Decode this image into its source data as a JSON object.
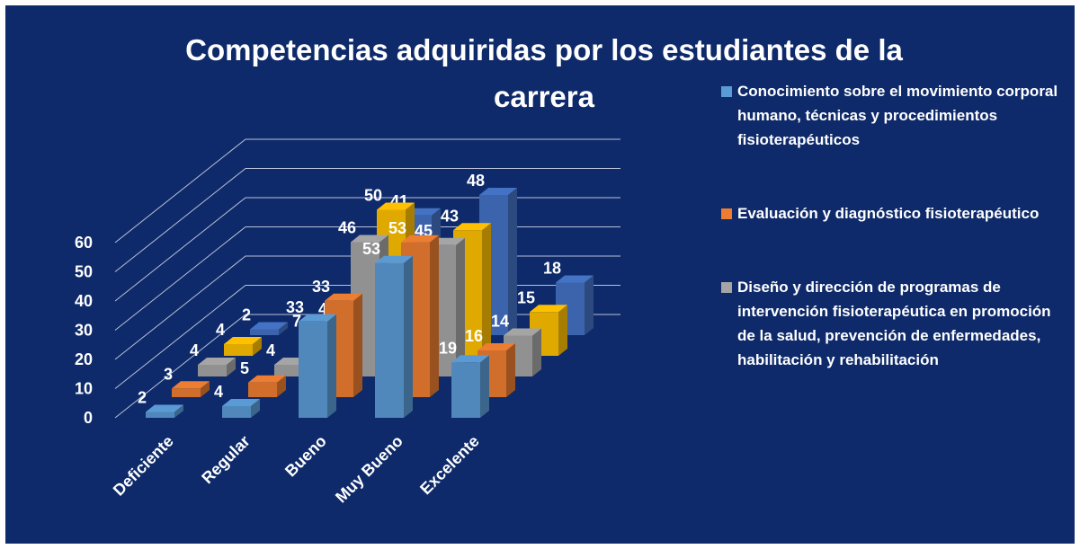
{
  "chart_data": {
    "type": "bar3d",
    "title": "Competencias adquiridas por los estudiantes de la carrera",
    "categories": [
      "Deficiente",
      "Regular",
      "Bueno",
      "Muy Bueno",
      "Excelente"
    ],
    "series": [
      {
        "name": "Conocimiento  sobre el movimiento corporal humano, técnicas  y procedimientos  fisioterapéuticos",
        "color": "#5b9bd5",
        "values": [
          2,
          4,
          33,
          53,
          19
        ]
      },
      {
        "name": "Evaluación y diagnóstico fisioterapéutico",
        "color": "#ed7d31",
        "values": [
          3,
          5,
          33,
          53,
          16
        ]
      },
      {
        "name": "Diseño y dirección de programas de intervención  fisioterapéutica en promoción de la salud, prevención de enfermedades, habilitación  y rehabilitación",
        "color": "#a5a5a5",
        "values": [
          4,
          4,
          46,
          45,
          14
        ]
      },
      {
        "color": "#ffc000",
        "values": [
          4,
          7,
          50,
          43,
          15
        ]
      },
      {
        "color": "#4472c4",
        "values": [
          2,
          4,
          41,
          48,
          18
        ]
      }
    ],
    "ylim": [
      0,
      60
    ],
    "yticks": [
      0,
      10,
      20,
      30,
      40,
      50,
      60
    ],
    "grid": true
  }
}
